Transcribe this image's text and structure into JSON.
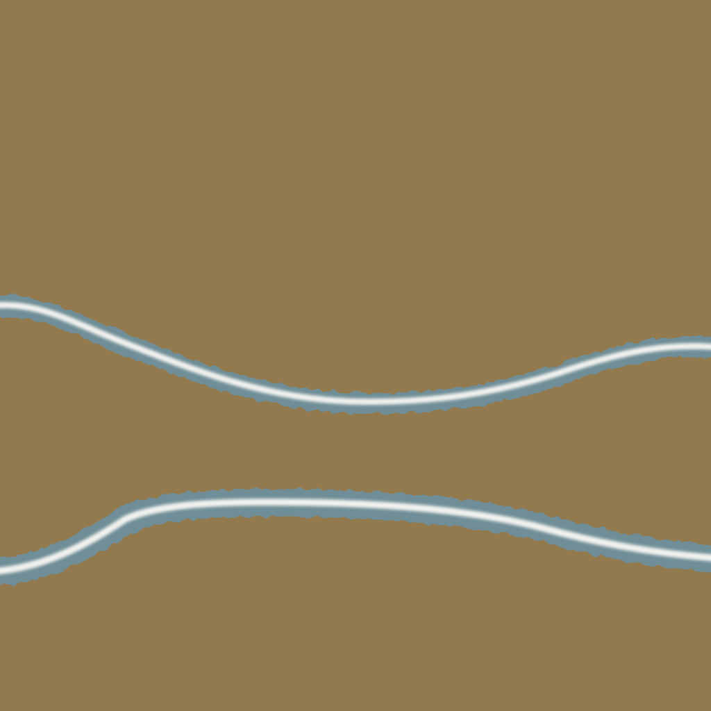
{
  "scene": {
    "type": "terrain-texture",
    "colors": {
      "ground": "#93794e",
      "water_edge": "#6e8f9c",
      "water_core": "#f2f2ee"
    },
    "features": [
      {
        "name": "upper-stream",
        "kind": "stream"
      },
      {
        "name": "lower-stream",
        "kind": "stream"
      }
    ]
  }
}
